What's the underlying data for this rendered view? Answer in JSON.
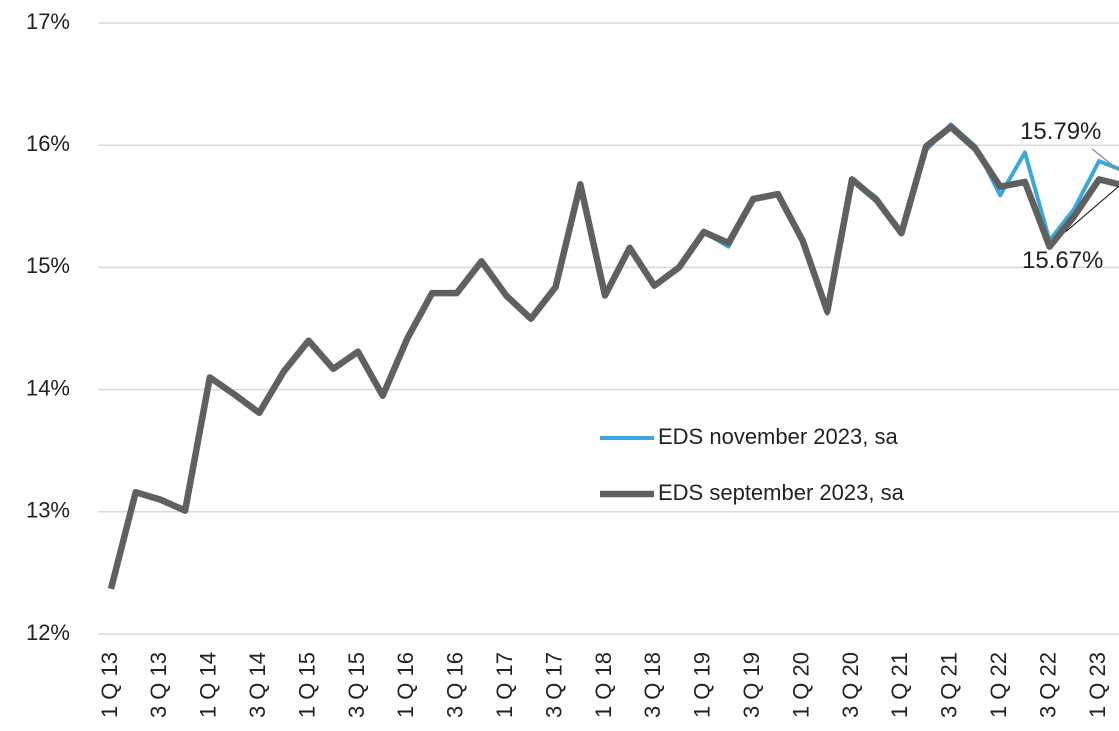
{
  "chart_data": {
    "type": "line",
    "categories": [
      "1 Q 13",
      null,
      "3 Q 13",
      null,
      "1 Q 14",
      null,
      "3 Q 14",
      null,
      "1 Q 15",
      null,
      "3 Q 15",
      null,
      "1 Q 16",
      null,
      "3 Q 16",
      null,
      "1 Q 17",
      null,
      "3 Q 17",
      null,
      "1 Q 18",
      null,
      "3 Q 18",
      null,
      "1 Q 19",
      null,
      "3 Q 19",
      null,
      "1 Q 20",
      null,
      "3 Q 20",
      null,
      "1 Q 21",
      null,
      "3 Q 21",
      null,
      "1 Q 22",
      null,
      "3 Q 22",
      null,
      "1 Q 23",
      null
    ],
    "series": [
      {
        "name": "EDS november 2023, sa",
        "color": "#3aa8dd",
        "width": 4,
        "values": [
          12.37,
          13.16,
          13.1,
          13.01,
          14.1,
          13.96,
          13.81,
          14.15,
          14.4,
          14.17,
          14.31,
          13.95,
          14.42,
          14.79,
          14.79,
          15.05,
          14.77,
          14.58,
          14.84,
          15.68,
          14.77,
          15.16,
          14.85,
          15.0,
          15.29,
          15.17,
          15.56,
          15.6,
          15.22,
          14.62,
          15.72,
          15.57,
          15.28,
          15.96,
          16.17,
          15.99,
          15.59,
          15.94,
          15.22,
          15.48,
          15.87,
          15.79
        ],
        "value_labels": [
          null,
          null,
          null,
          null,
          null,
          null,
          null,
          null,
          null,
          null,
          null,
          null,
          null,
          null,
          null,
          null,
          null,
          null,
          null,
          null,
          null,
          null,
          null,
          null,
          null,
          null,
          null,
          null,
          null,
          null,
          null,
          null,
          null,
          null,
          null,
          null,
          null,
          null,
          null,
          null,
          null,
          "15.79%"
        ]
      },
      {
        "name": "EDS september 2023, sa",
        "color": "#606060",
        "width": 6.5,
        "values": [
          12.37,
          13.16,
          13.1,
          13.01,
          14.1,
          13.96,
          13.81,
          14.15,
          14.4,
          14.17,
          14.31,
          13.95,
          14.42,
          14.79,
          14.79,
          15.05,
          14.77,
          14.58,
          14.84,
          15.68,
          14.77,
          15.16,
          14.85,
          15.0,
          15.29,
          15.2,
          15.56,
          15.6,
          15.22,
          14.64,
          15.72,
          15.55,
          15.28,
          15.99,
          16.15,
          15.97,
          15.66,
          15.7,
          15.17,
          15.42,
          15.72,
          15.67
        ],
        "value_labels": [
          null,
          null,
          null,
          null,
          null,
          null,
          null,
          null,
          null,
          null,
          null,
          null,
          null,
          null,
          null,
          null,
          null,
          null,
          null,
          null,
          null,
          null,
          null,
          null,
          null,
          null,
          null,
          null,
          null,
          null,
          null,
          null,
          null,
          null,
          null,
          null,
          null,
          null,
          null,
          null,
          null,
          "15.67%"
        ]
      }
    ],
    "ylim": [
      12,
      17
    ],
    "yticks": [
      {
        "value": 12,
        "label": "12%"
      },
      {
        "value": 13,
        "label": "13%"
      },
      {
        "value": 14,
        "label": "14%"
      },
      {
        "value": 15,
        "label": "15%"
      },
      {
        "value": 16,
        "label": "16%"
      },
      {
        "value": 17,
        "label": "17%"
      }
    ],
    "grid": true,
    "legend": "center-right"
  }
}
